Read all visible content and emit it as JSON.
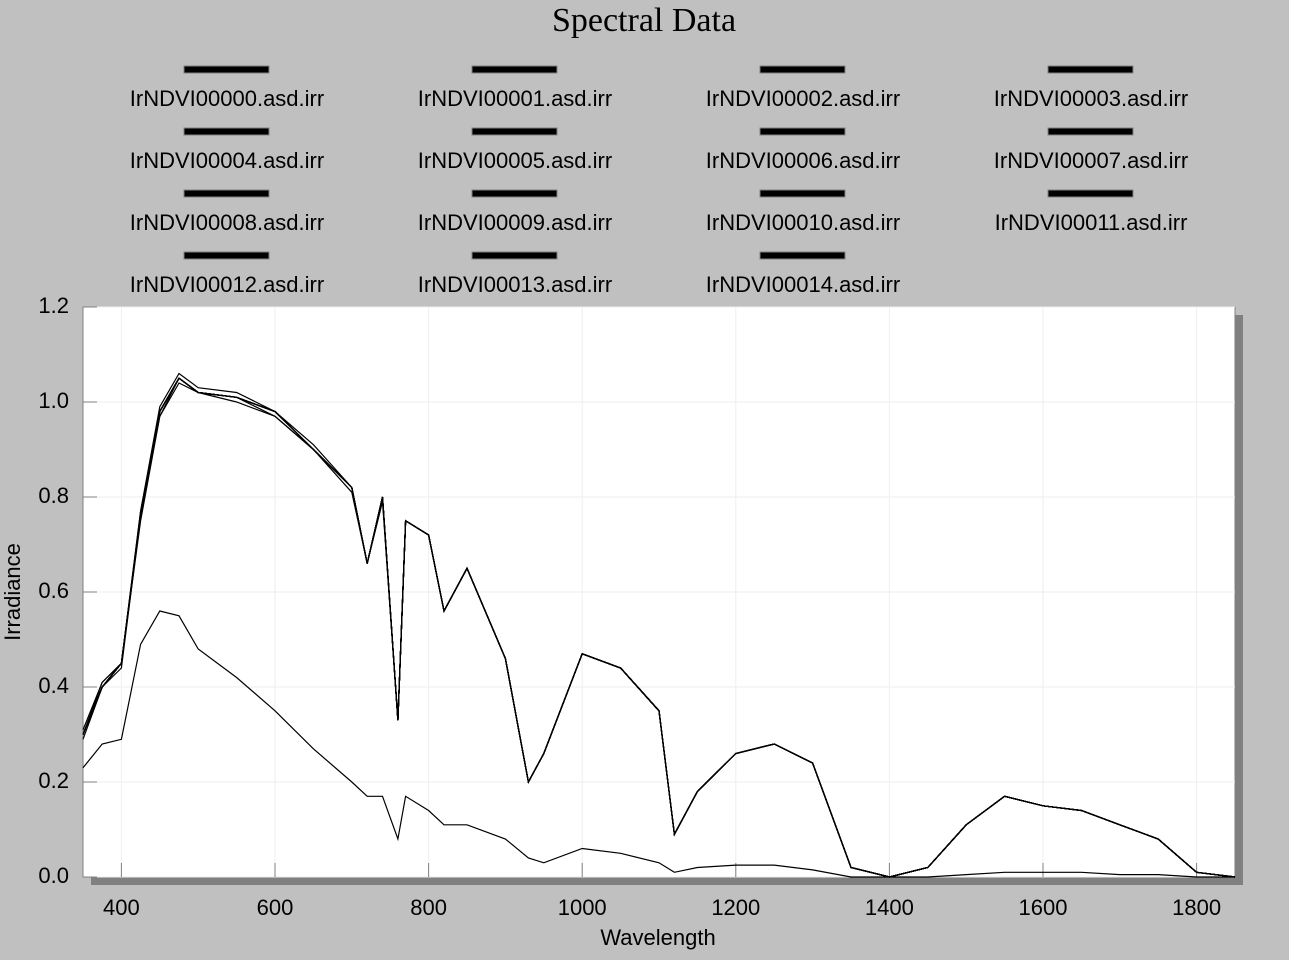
{
  "chart_data": {
    "type": "line",
    "title": "Spectral Data",
    "x_label": "Wavelength",
    "y_label": "Irradiance",
    "x": [
      350,
      375,
      400,
      425,
      450,
      475,
      500,
      550,
      600,
      650,
      700,
      720,
      740,
      760,
      770,
      800,
      820,
      850,
      900,
      930,
      950,
      1000,
      1050,
      1100,
      1120,
      1150,
      1200,
      1250,
      1300,
      1350,
      1400,
      1450,
      1500,
      1550,
      1600,
      1650,
      1700,
      1750,
      1800,
      1850
    ],
    "series": [
      {
        "name": "IrNDVI00000.asd.irr",
        "color": "#000000",
        "values": [
          0.3,
          0.4,
          0.45,
          0.76,
          0.98,
          1.05,
          1.02,
          1.01,
          0.98,
          0.9,
          0.82,
          0.66,
          0.8,
          0.33,
          0.75,
          0.72,
          0.56,
          0.65,
          0.46,
          0.2,
          0.26,
          0.47,
          0.44,
          0.35,
          0.09,
          0.18,
          0.26,
          0.28,
          0.24,
          0.02,
          0.0,
          0.02,
          0.11,
          0.17,
          0.15,
          0.14,
          0.11,
          0.08,
          0.01,
          0.0
        ]
      },
      {
        "name": "IrNDVI00001.asd.irr",
        "color": "#000000",
        "values": [
          0.3,
          0.41,
          0.45,
          0.77,
          0.99,
          1.06,
          1.03,
          1.02,
          0.98,
          0.91,
          0.82,
          0.66,
          0.8,
          0.33,
          0.75,
          0.72,
          0.56,
          0.65,
          0.46,
          0.2,
          0.26,
          0.47,
          0.44,
          0.35,
          0.09,
          0.18,
          0.26,
          0.28,
          0.24,
          0.02,
          0.0,
          0.02,
          0.11,
          0.17,
          0.15,
          0.14,
          0.11,
          0.08,
          0.01,
          0.0
        ]
      },
      {
        "name": "IrNDVI00002.asd.irr",
        "color": "#000000",
        "values": [
          0.3,
          0.4,
          0.44,
          0.76,
          0.97,
          1.04,
          1.02,
          1.0,
          0.97,
          0.9,
          0.81,
          0.66,
          0.79,
          0.33,
          0.75,
          0.72,
          0.56,
          0.65,
          0.46,
          0.2,
          0.26,
          0.47,
          0.44,
          0.35,
          0.09,
          0.18,
          0.26,
          0.28,
          0.24,
          0.02,
          0.0,
          0.02,
          0.11,
          0.17,
          0.15,
          0.14,
          0.11,
          0.08,
          0.01,
          0.0
        ]
      },
      {
        "name": "IrNDVI00003.asd.irr",
        "color": "#000000",
        "values": [
          0.3,
          0.4,
          0.45,
          0.76,
          0.98,
          1.05,
          1.02,
          1.01,
          0.98,
          0.9,
          0.82,
          0.66,
          0.8,
          0.33,
          0.75,
          0.72,
          0.56,
          0.65,
          0.46,
          0.2,
          0.26,
          0.47,
          0.44,
          0.35,
          0.09,
          0.18,
          0.26,
          0.28,
          0.24,
          0.02,
          0.0,
          0.02,
          0.11,
          0.17,
          0.15,
          0.14,
          0.11,
          0.08,
          0.01,
          0.0
        ]
      },
      {
        "name": "IrNDVI00004.asd.irr",
        "color": "#000000",
        "values": [
          0.31,
          0.41,
          0.45,
          0.77,
          0.98,
          1.05,
          1.02,
          1.01,
          0.98,
          0.9,
          0.82,
          0.66,
          0.8,
          0.33,
          0.75,
          0.72,
          0.56,
          0.65,
          0.46,
          0.2,
          0.26,
          0.47,
          0.44,
          0.35,
          0.09,
          0.18,
          0.26,
          0.28,
          0.24,
          0.02,
          0.0,
          0.02,
          0.11,
          0.17,
          0.15,
          0.14,
          0.11,
          0.08,
          0.01,
          0.0
        ]
      },
      {
        "name": "IrNDVI00005.asd.irr",
        "color": "#000000",
        "values": [
          0.3,
          0.4,
          0.45,
          0.76,
          0.98,
          1.05,
          1.02,
          1.01,
          0.98,
          0.9,
          0.82,
          0.66,
          0.8,
          0.33,
          0.75,
          0.72,
          0.56,
          0.65,
          0.46,
          0.2,
          0.26,
          0.47,
          0.44,
          0.35,
          0.09,
          0.18,
          0.26,
          0.28,
          0.24,
          0.02,
          0.0,
          0.02,
          0.11,
          0.17,
          0.15,
          0.14,
          0.11,
          0.08,
          0.01,
          0.0
        ]
      },
      {
        "name": "IrNDVI00006.asd.irr",
        "color": "#000000",
        "values": [
          0.3,
          0.4,
          0.45,
          0.76,
          0.98,
          1.05,
          1.02,
          1.01,
          0.97,
          0.9,
          0.82,
          0.66,
          0.8,
          0.33,
          0.75,
          0.72,
          0.56,
          0.65,
          0.46,
          0.2,
          0.26,
          0.47,
          0.44,
          0.35,
          0.09,
          0.18,
          0.26,
          0.28,
          0.24,
          0.02,
          0.0,
          0.02,
          0.11,
          0.17,
          0.15,
          0.14,
          0.11,
          0.08,
          0.01,
          0.0
        ]
      },
      {
        "name": "IrNDVI00007.asd.irr",
        "color": "#000000",
        "values": [
          0.3,
          0.4,
          0.45,
          0.76,
          0.98,
          1.05,
          1.02,
          1.01,
          0.98,
          0.9,
          0.82,
          0.66,
          0.8,
          0.33,
          0.75,
          0.72,
          0.56,
          0.65,
          0.46,
          0.2,
          0.26,
          0.47,
          0.44,
          0.35,
          0.09,
          0.18,
          0.26,
          0.28,
          0.24,
          0.02,
          0.0,
          0.02,
          0.11,
          0.17,
          0.15,
          0.14,
          0.11,
          0.08,
          0.01,
          0.0
        ]
      },
      {
        "name": "IrNDVI00008.asd.irr",
        "color": "#000000",
        "values": [
          0.29,
          0.4,
          0.45,
          0.75,
          0.97,
          1.05,
          1.02,
          1.01,
          0.98,
          0.9,
          0.82,
          0.66,
          0.8,
          0.33,
          0.75,
          0.72,
          0.56,
          0.65,
          0.46,
          0.2,
          0.26,
          0.47,
          0.44,
          0.35,
          0.09,
          0.18,
          0.26,
          0.28,
          0.24,
          0.02,
          0.0,
          0.02,
          0.11,
          0.17,
          0.15,
          0.14,
          0.11,
          0.08,
          0.01,
          0.0
        ]
      },
      {
        "name": "IrNDVI00009.asd.irr",
        "color": "#000000",
        "values": [
          0.3,
          0.4,
          0.45,
          0.76,
          0.98,
          1.05,
          1.02,
          1.01,
          0.98,
          0.9,
          0.82,
          0.66,
          0.8,
          0.33,
          0.75,
          0.72,
          0.56,
          0.65,
          0.46,
          0.2,
          0.26,
          0.47,
          0.44,
          0.35,
          0.09,
          0.18,
          0.26,
          0.28,
          0.24,
          0.02,
          0.0,
          0.02,
          0.11,
          0.17,
          0.15,
          0.14,
          0.11,
          0.08,
          0.01,
          0.0
        ]
      },
      {
        "name": "IrNDVI00010.asd.irr",
        "color": "#000000",
        "values": [
          0.3,
          0.4,
          0.45,
          0.76,
          0.98,
          1.05,
          1.02,
          1.01,
          0.98,
          0.9,
          0.82,
          0.66,
          0.8,
          0.33,
          0.75,
          0.72,
          0.56,
          0.65,
          0.46,
          0.2,
          0.26,
          0.47,
          0.44,
          0.35,
          0.09,
          0.18,
          0.26,
          0.28,
          0.24,
          0.02,
          0.0,
          0.02,
          0.11,
          0.17,
          0.15,
          0.14,
          0.11,
          0.08,
          0.01,
          0.0
        ]
      },
      {
        "name": "IrNDVI00011.asd.irr",
        "color": "#000000",
        "values": [
          0.3,
          0.4,
          0.45,
          0.76,
          0.98,
          1.05,
          1.02,
          1.01,
          0.98,
          0.9,
          0.82,
          0.66,
          0.8,
          0.33,
          0.75,
          0.72,
          0.56,
          0.65,
          0.46,
          0.2,
          0.26,
          0.47,
          0.44,
          0.35,
          0.09,
          0.18,
          0.26,
          0.28,
          0.24,
          0.02,
          0.0,
          0.02,
          0.11,
          0.17,
          0.15,
          0.14,
          0.11,
          0.08,
          0.01,
          0.0
        ]
      },
      {
        "name": "IrNDVI00012.asd.irr",
        "color": "#000000",
        "values": [
          0.3,
          0.4,
          0.45,
          0.76,
          0.98,
          1.05,
          1.02,
          1.01,
          0.98,
          0.9,
          0.82,
          0.66,
          0.8,
          0.33,
          0.75,
          0.72,
          0.56,
          0.65,
          0.46,
          0.2,
          0.26,
          0.47,
          0.44,
          0.35,
          0.09,
          0.18,
          0.26,
          0.28,
          0.24,
          0.02,
          0.0,
          0.02,
          0.11,
          0.17,
          0.15,
          0.14,
          0.11,
          0.08,
          0.01,
          0.0
        ]
      },
      {
        "name": "IrNDVI00013.asd.irr",
        "color": "#000000",
        "values": [
          0.3,
          0.4,
          0.45,
          0.76,
          0.98,
          1.05,
          1.02,
          1.01,
          0.98,
          0.9,
          0.82,
          0.66,
          0.8,
          0.33,
          0.75,
          0.72,
          0.56,
          0.65,
          0.46,
          0.2,
          0.26,
          0.47,
          0.44,
          0.35,
          0.09,
          0.18,
          0.26,
          0.28,
          0.24,
          0.02,
          0.0,
          0.02,
          0.11,
          0.17,
          0.15,
          0.14,
          0.11,
          0.08,
          0.01,
          0.0
        ]
      },
      {
        "name": "IrNDVI00014.asd.irr",
        "color": "#000000",
        "values": [
          0.23,
          0.28,
          0.29,
          0.49,
          0.56,
          0.55,
          0.48,
          0.42,
          0.35,
          0.27,
          0.2,
          0.17,
          0.17,
          0.08,
          0.17,
          0.14,
          0.11,
          0.11,
          0.08,
          0.04,
          0.03,
          0.06,
          0.05,
          0.03,
          0.01,
          0.02,
          0.025,
          0.025,
          0.015,
          0.0,
          0.0,
          0.0,
          0.005,
          0.01,
          0.01,
          0.01,
          0.005,
          0.005,
          0.0,
          0.0
        ]
      }
    ],
    "xlim": [
      350,
      1850
    ],
    "ylim": [
      0,
      1.2
    ],
    "xticks": [
      400,
      600,
      800,
      1000,
      1200,
      1400,
      1600,
      1800
    ],
    "yticks": [
      {
        "value": 0,
        "label": "0.0"
      },
      {
        "value": 0.2,
        "label": "0.2"
      },
      {
        "value": 0.4,
        "label": "0.4"
      },
      {
        "value": 0.6,
        "label": "0.6"
      },
      {
        "value": 0.8,
        "label": "0.8"
      },
      {
        "value": 1.0,
        "label": "1.0"
      },
      {
        "value": 1.2,
        "label": "1.2"
      }
    ],
    "grid": true
  }
}
